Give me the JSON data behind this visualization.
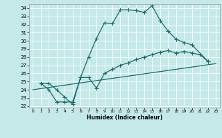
{
  "xlabel": "Humidex (Indice chaleur)",
  "bg_color": "#c5e8e8",
  "line_color": "#1a6b6b",
  "xlim": [
    -0.5,
    23.5
  ],
  "ylim": [
    21.8,
    34.5
  ],
  "xticks": [
    0,
    1,
    2,
    3,
    4,
    5,
    6,
    7,
    8,
    9,
    10,
    11,
    12,
    13,
    14,
    15,
    16,
    17,
    18,
    19,
    20,
    21,
    22,
    23
  ],
  "yticks": [
    22,
    23,
    24,
    25,
    26,
    27,
    28,
    29,
    30,
    31,
    32,
    33,
    34
  ],
  "line1_x": [
    1,
    2,
    3,
    4,
    5,
    6,
    7,
    8,
    9,
    10,
    11,
    12,
    13,
    14,
    15,
    16,
    17,
    18,
    19,
    20,
    22
  ],
  "line1_y": [
    24.8,
    24.8,
    24.0,
    23.1,
    22.2,
    25.5,
    28.0,
    30.3,
    32.2,
    32.1,
    33.8,
    33.8,
    33.7,
    33.5,
    34.3,
    32.5,
    31.2,
    30.2,
    29.8,
    29.5,
    27.5
  ],
  "line2_x": [
    1,
    2,
    3,
    4,
    5,
    6,
    7,
    8,
    9,
    10,
    11,
    12,
    13,
    14,
    15,
    16,
    17,
    18,
    19,
    20,
    21,
    22
  ],
  "line2_y": [
    24.8,
    24.0,
    22.5,
    22.5,
    22.5,
    25.5,
    25.5,
    24.2,
    26.0,
    26.5,
    27.0,
    27.3,
    27.7,
    28.0,
    28.3,
    28.6,
    28.8,
    28.5,
    28.7,
    28.5,
    28.3,
    27.5
  ],
  "line3_x": [
    0,
    23
  ],
  "line3_y": [
    24.0,
    27.2
  ],
  "markersize": 2.5,
  "linewidth": 0.9
}
